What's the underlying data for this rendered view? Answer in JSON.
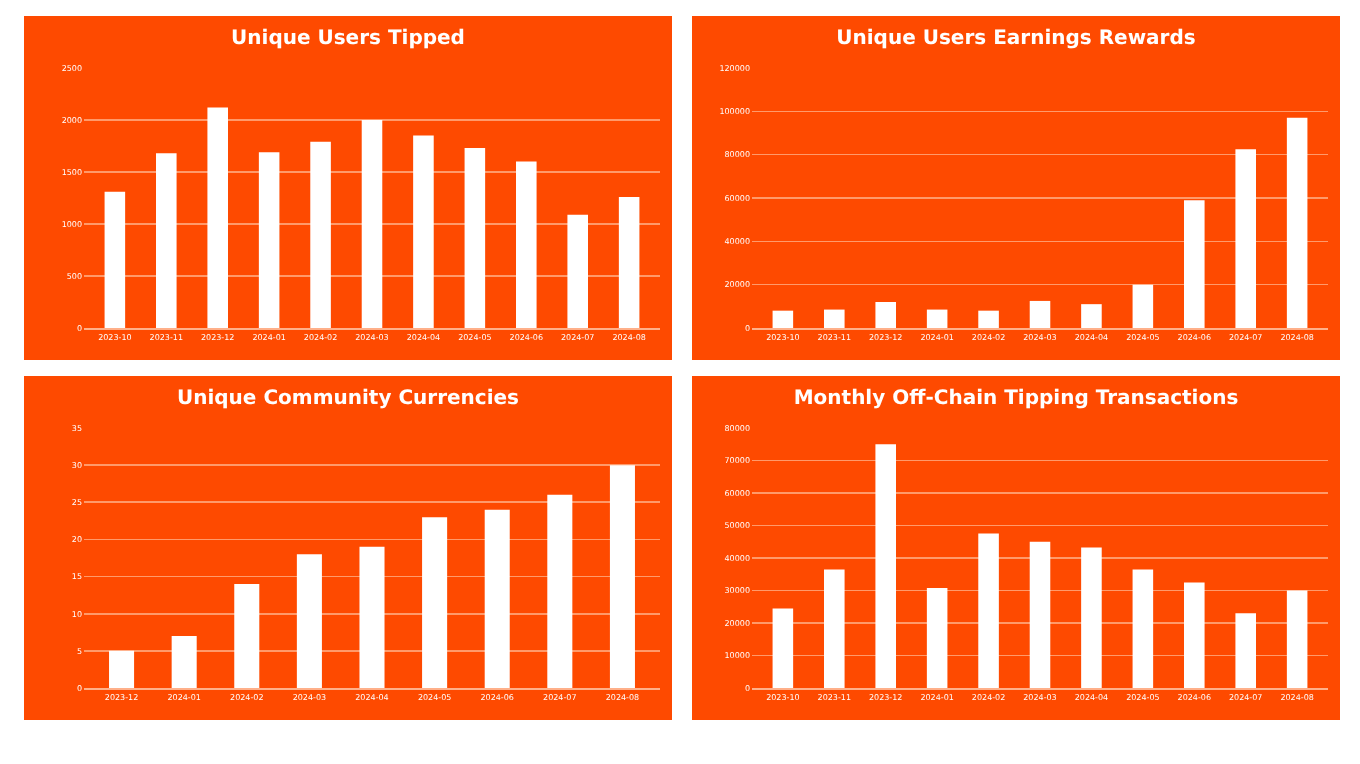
{
  "chart_data": [
    {
      "type": "bar",
      "title": "Unique Users Tipped",
      "categories": [
        "2023-10",
        "2023-11",
        "2023-12",
        "2024-01",
        "2024-02",
        "2024-03",
        "2024-04",
        "2024-05",
        "2024-06",
        "2024-07",
        "2024-08"
      ],
      "values": [
        1310,
        1680,
        2120,
        1690,
        1790,
        2000,
        1850,
        1730,
        1600,
        1090,
        1260
      ],
      "color": "#ffffff",
      "ylim": [
        0,
        2500
      ],
      "yticks": [
        0,
        500,
        1000,
        1500,
        2000,
        2500
      ],
      "grid": "y"
    },
    {
      "type": "bar",
      "title": "Unique Users Earnings Rewards",
      "categories": [
        "2023-10",
        "2023-11",
        "2023-12",
        "2024-01",
        "2024-02",
        "2024-03",
        "2024-04",
        "2024-05",
        "2024-06",
        "2024-07",
        "2024-08"
      ],
      "values": [
        8000,
        8500,
        12000,
        8500,
        8000,
        12500,
        11000,
        20000,
        59000,
        82500,
        97000
      ],
      "color": "#ffffff",
      "ylim": [
        0,
        120000
      ],
      "yticks": [
        0,
        20000,
        40000,
        60000,
        80000,
        100000,
        120000
      ],
      "grid": "y"
    },
    {
      "type": "bar",
      "title": "Unique Community Currencies",
      "categories": [
        "2023-12",
        "2024-01",
        "2024-02",
        "2024-03",
        "2024-04",
        "2024-05",
        "2024-06",
        "2024-07",
        "2024-08"
      ],
      "values": [
        5,
        7,
        14,
        18,
        19,
        23,
        24,
        26,
        30
      ],
      "color": "#ffffff",
      "ylim": [
        0,
        35
      ],
      "yticks": [
        0,
        5,
        10,
        15,
        20,
        25,
        30,
        35
      ],
      "grid": "y"
    },
    {
      "type": "bar",
      "title": "Monthly Off-Chain Tipping Transactions",
      "categories": [
        "2023-10",
        "2023-11",
        "2023-12",
        "2024-01",
        "2024-02",
        "2024-03",
        "2024-04",
        "2024-05",
        "2024-06",
        "2024-07",
        "2024-08"
      ],
      "values": [
        24500,
        36500,
        75000,
        30800,
        47500,
        45000,
        43200,
        36500,
        32500,
        23000,
        30000
      ],
      "color": "#ffffff",
      "ylim": [
        0,
        80000
      ],
      "yticks": [
        0,
        10000,
        20000,
        30000,
        40000,
        50000,
        60000,
        70000,
        80000
      ],
      "grid": "y"
    }
  ]
}
